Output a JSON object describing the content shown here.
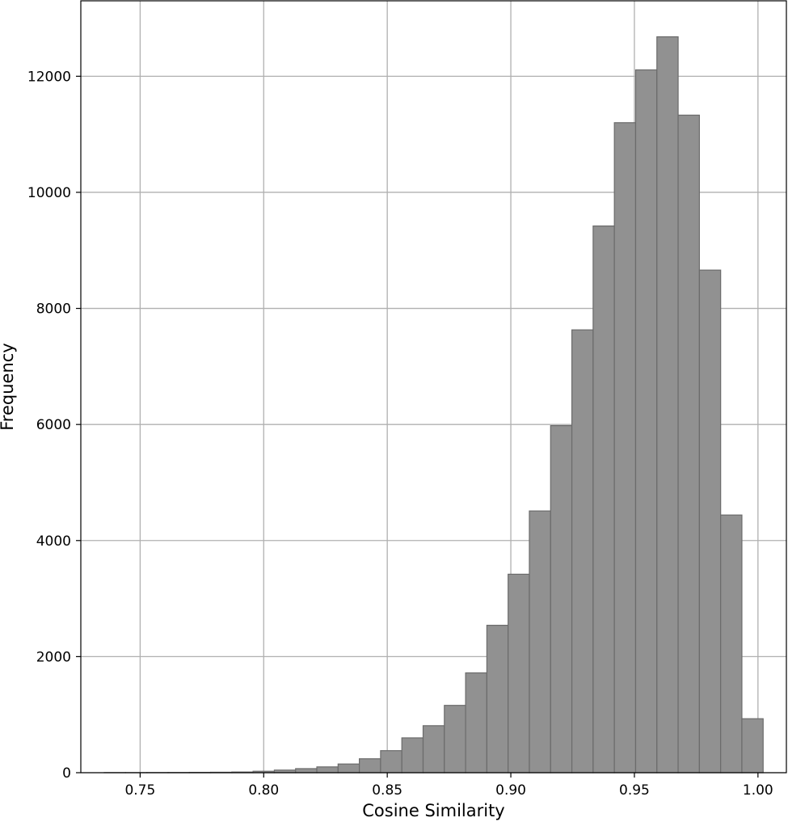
{
  "chart_data": {
    "type": "bar",
    "subtype": "histogram",
    "title": "",
    "xlabel": "Cosine Similarity",
    "ylabel": "Frequency",
    "xlim": [
      0.726,
      1.0115
    ],
    "ylim": [
      0,
      13300
    ],
    "xticks": [
      0.75,
      0.8,
      0.85,
      0.9,
      0.95,
      1.0
    ],
    "xtick_labels": [
      "0.75",
      "0.80",
      "0.85",
      "0.90",
      "0.95",
      "1.00"
    ],
    "yticks": [
      0,
      2000,
      4000,
      6000,
      8000,
      10000,
      12000
    ],
    "ytick_labels": [
      "0",
      "2000",
      "4000",
      "6000",
      "8000",
      "10000",
      "12000"
    ],
    "grid": true,
    "bar_color": "#919191",
    "bar_edge_color": "#6b6b6b",
    "bins": [
      {
        "x0": 0.7355,
        "x1": 0.7441,
        "count": 2
      },
      {
        "x0": 0.7441,
        "x1": 0.7527,
        "count": 2
      },
      {
        "x0": 0.7527,
        "x1": 0.7613,
        "count": 3
      },
      {
        "x0": 0.7613,
        "x1": 0.7699,
        "count": 4
      },
      {
        "x0": 0.7699,
        "x1": 0.7785,
        "count": 6
      },
      {
        "x0": 0.7785,
        "x1": 0.7871,
        "count": 8
      },
      {
        "x0": 0.7871,
        "x1": 0.7957,
        "count": 12
      },
      {
        "x0": 0.7957,
        "x1": 0.8043,
        "count": 25
      },
      {
        "x0": 0.8043,
        "x1": 0.8129,
        "count": 45
      },
      {
        "x0": 0.8129,
        "x1": 0.8215,
        "count": 70
      },
      {
        "x0": 0.8215,
        "x1": 0.8301,
        "count": 100
      },
      {
        "x0": 0.8301,
        "x1": 0.8387,
        "count": 150
      },
      {
        "x0": 0.8387,
        "x1": 0.8473,
        "count": 240
      },
      {
        "x0": 0.8473,
        "x1": 0.8559,
        "count": 380
      },
      {
        "x0": 0.8559,
        "x1": 0.8645,
        "count": 600
      },
      {
        "x0": 0.8645,
        "x1": 0.8731,
        "count": 810
      },
      {
        "x0": 0.8731,
        "x1": 0.8817,
        "count": 1160
      },
      {
        "x0": 0.8817,
        "x1": 0.8903,
        "count": 1720
      },
      {
        "x0": 0.8903,
        "x1": 0.8989,
        "count": 2540
      },
      {
        "x0": 0.8989,
        "x1": 0.9075,
        "count": 3420
      },
      {
        "x0": 0.9075,
        "x1": 0.9161,
        "count": 4510
      },
      {
        "x0": 0.9161,
        "x1": 0.9247,
        "count": 5980
      },
      {
        "x0": 0.9247,
        "x1": 0.9333,
        "count": 7630
      },
      {
        "x0": 0.9333,
        "x1": 0.9419,
        "count": 9420
      },
      {
        "x0": 0.9419,
        "x1": 0.9505,
        "count": 11200
      },
      {
        "x0": 0.9505,
        "x1": 0.9591,
        "count": 12110
      },
      {
        "x0": 0.9591,
        "x1": 0.9677,
        "count": 12680
      },
      {
        "x0": 0.9677,
        "x1": 0.9763,
        "count": 11330
      },
      {
        "x0": 0.9763,
        "x1": 0.9849,
        "count": 8660
      },
      {
        "x0": 0.9849,
        "x1": 0.9935,
        "count": 4440
      },
      {
        "x0": 0.9935,
        "x1": 1.0021,
        "count": 930
      }
    ]
  }
}
